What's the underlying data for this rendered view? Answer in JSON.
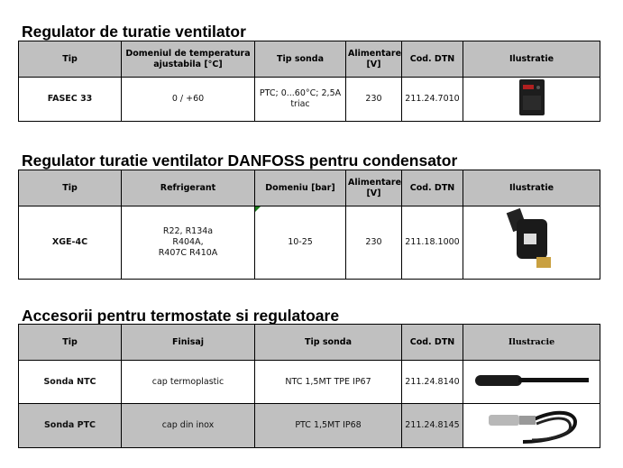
{
  "sections": [
    {
      "title": "Regulator de turatie ventilator",
      "headers": [
        "Tip",
        "Domeniul de temperatura ajustabila [°C]",
        "Tip sonda",
        "Alimentare [V]",
        "Cod. DTN",
        "Ilustratie"
      ],
      "rows": [
        [
          "FASEC 33",
          "0 / +60",
          "PTC; 0...60°C; 2,5A triac",
          "230",
          "211.24.7010"
        ]
      ]
    },
    {
      "title": "Regulator turatie ventilator DANFOSS pentru condensator",
      "headers": [
        "Tip",
        "Refrigerant",
        "Domeniu [bar]",
        "Alimentare [V]",
        "Cod. DTN",
        "Ilustratie"
      ],
      "rows": [
        [
          "XGE-4C",
          "R22, R134a R404A, R407C R410A",
          "10-25",
          "230",
          "211.18.1000"
        ]
      ]
    },
    {
      "title": "Accesorii pentru termostate si regulatoare",
      "headers": [
        "Tip",
        "Finisaj",
        "Tip sonda",
        "Cod. DTN",
        "Ilustracie"
      ],
      "rows": [
        [
          "Sonda NTC",
          "cap termoplastic",
          "NTC 1,5MT TPE IP67",
          "211.24.8140"
        ],
        [
          "Sonda PTC",
          "cap din inox",
          "PTC 1,5MT IP68",
          "211.24.8145"
        ]
      ]
    }
  ]
}
